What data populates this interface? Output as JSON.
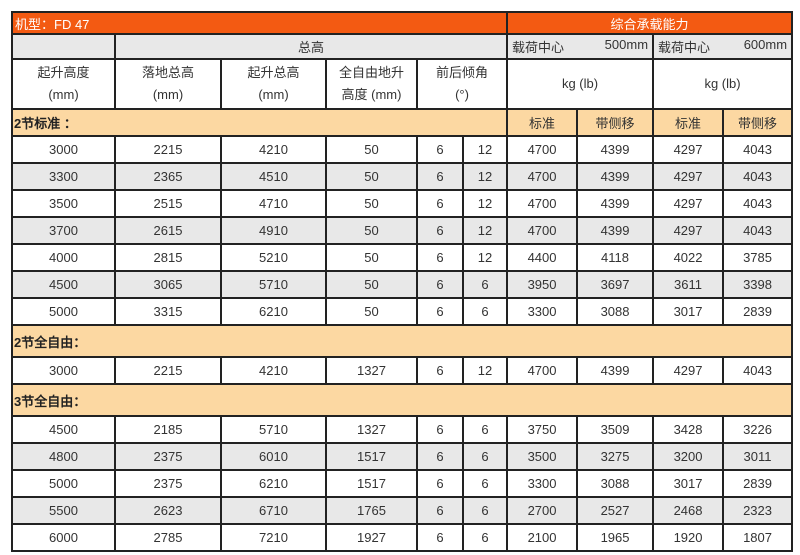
{
  "title": {
    "model": "机型：FD 47",
    "capacity": "综合承载能力"
  },
  "sub": {
    "total_height": "总高",
    "lc1_label": "载荷中心",
    "lc1_value": "500mm",
    "lc2_label": "载荷中心",
    "lc2_value": "600mm"
  },
  "headers": {
    "lift_height": "起升高度",
    "lift_height_unit": "(mm)",
    "lowered": "落地总高",
    "lowered_unit": "(mm)",
    "raised": "起升总高",
    "raised_unit": "(mm)",
    "free_lift": "全自由地升",
    "free_lift_unit": "高度 (mm)",
    "tilt": "前后倾角",
    "tilt_unit": "(°)",
    "kg1": "kg (lb)",
    "kg2": "kg (lb)"
  },
  "sections": [
    {
      "label": "2节标准 ：",
      "sub": [
        "标准",
        "带侧移",
        "标准",
        "带侧移"
      ],
      "rows": [
        [
          "3000",
          "2215",
          "4210",
          "50",
          "6",
          "12",
          "4700",
          "4399",
          "4297",
          "4043"
        ],
        [
          "3300",
          "2365",
          "4510",
          "50",
          "6",
          "12",
          "4700",
          "4399",
          "4297",
          "4043"
        ],
        [
          "3500",
          "2515",
          "4710",
          "50",
          "6",
          "12",
          "4700",
          "4399",
          "4297",
          "4043"
        ],
        [
          "3700",
          "2615",
          "4910",
          "50",
          "6",
          "12",
          "4700",
          "4399",
          "4297",
          "4043"
        ],
        [
          "4000",
          "2815",
          "5210",
          "50",
          "6",
          "12",
          "4400",
          "4118",
          "4022",
          "3785"
        ],
        [
          "4500",
          "3065",
          "5710",
          "50",
          "6",
          "6",
          "3950",
          "3697",
          "3611",
          "3398"
        ],
        [
          "5000",
          "3315",
          "6210",
          "50",
          "6",
          "6",
          "3300",
          "3088",
          "3017",
          "2839"
        ]
      ]
    },
    {
      "label": "2节全自由：",
      "rows": [
        [
          "3000",
          "2215",
          "4210",
          "1327",
          "6",
          "12",
          "4700",
          "4399",
          "4297",
          "4043"
        ]
      ]
    },
    {
      "label": "3节全自由：",
      "rows": [
        [
          "4500",
          "2185",
          "5710",
          "1327",
          "6",
          "6",
          "3750",
          "3509",
          "3428",
          "3226"
        ],
        [
          "4800",
          "2375",
          "6010",
          "1517",
          "6",
          "6",
          "3500",
          "3275",
          "3200",
          "3011"
        ],
        [
          "5000",
          "2375",
          "6210",
          "1517",
          "6",
          "6",
          "3300",
          "3088",
          "3017",
          "2839"
        ],
        [
          "5500",
          "2623",
          "6710",
          "1765",
          "6",
          "6",
          "2700",
          "2527",
          "2468",
          "2323"
        ],
        [
          "6000",
          "2785",
          "7210",
          "1927",
          "6",
          "6",
          "2100",
          "1965",
          "1920",
          "1807"
        ]
      ]
    }
  ],
  "colors": {
    "title_bg": "#f35a12",
    "section_bg": "#fcd8a2",
    "stripe": "#e8e8e8"
  }
}
